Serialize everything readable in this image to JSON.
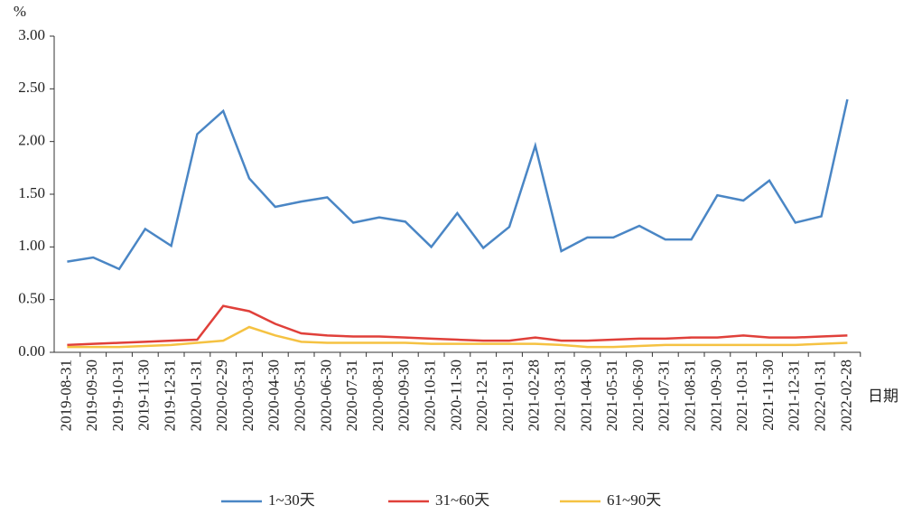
{
  "chart_data": {
    "type": "line",
    "y_label": "%",
    "x_label": "日期",
    "categories": [
      "2019-08-31",
      "2019-09-30",
      "2019-10-31",
      "2019-11-30",
      "2019-12-31",
      "2020-01-31",
      "2020-02-29",
      "2020-03-31",
      "2020-04-30",
      "2020-05-31",
      "2020-06-30",
      "2020-07-31",
      "2020-08-31",
      "2020-09-30",
      "2020-10-31",
      "2020-11-30",
      "2020-12-31",
      "2021-01-31",
      "2021-02-28",
      "2021-03-31",
      "2021-04-30",
      "2021-05-31",
      "2021-06-30",
      "2021-07-31",
      "2021-08-31",
      "2021-09-30",
      "2021-10-31",
      "2021-11-30",
      "2021-12-31",
      "2022-01-31",
      "2022-02-28"
    ],
    "series": [
      {
        "name": "1~30天",
        "color": "#4a86c5",
        "values": [
          0.86,
          0.9,
          0.79,
          1.17,
          1.01,
          2.07,
          2.29,
          1.65,
          1.38,
          1.43,
          1.47,
          1.23,
          1.28,
          1.24,
          1.0,
          1.32,
          0.99,
          1.19,
          1.96,
          0.96,
          1.09,
          1.09,
          1.2,
          1.07,
          1.07,
          1.49,
          1.44,
          1.63,
          1.23,
          1.29,
          2.4
        ]
      },
      {
        "name": "31~60天",
        "color": "#e0403a",
        "values": [
          0.07,
          0.08,
          0.09,
          0.1,
          0.11,
          0.12,
          0.44,
          0.39,
          0.27,
          0.18,
          0.16,
          0.15,
          0.15,
          0.14,
          0.13,
          0.12,
          0.11,
          0.11,
          0.14,
          0.11,
          0.11,
          0.12,
          0.13,
          0.13,
          0.14,
          0.14,
          0.16,
          0.14,
          0.14,
          0.15,
          0.16
        ]
      },
      {
        "name": "61~90天",
        "color": "#f5c242",
        "values": [
          0.05,
          0.05,
          0.05,
          0.06,
          0.07,
          0.09,
          0.11,
          0.24,
          0.16,
          0.1,
          0.09,
          0.09,
          0.09,
          0.09,
          0.08,
          0.08,
          0.08,
          0.08,
          0.08,
          0.07,
          0.05,
          0.05,
          0.06,
          0.07,
          0.07,
          0.07,
          0.07,
          0.07,
          0.07,
          0.08,
          0.09
        ]
      }
    ],
    "ylim": [
      0,
      3
    ],
    "yticks": [
      {
        "value": 0,
        "label": "0.00"
      },
      {
        "value": 0.5,
        "label": "0.50"
      },
      {
        "value": 1,
        "label": "1.00"
      },
      {
        "value": 1.5,
        "label": "1.50"
      },
      {
        "value": 2,
        "label": "2.00"
      },
      {
        "value": 2.5,
        "label": "2.50"
      },
      {
        "value": 3,
        "label": "3.00"
      }
    ],
    "grid": false
  }
}
